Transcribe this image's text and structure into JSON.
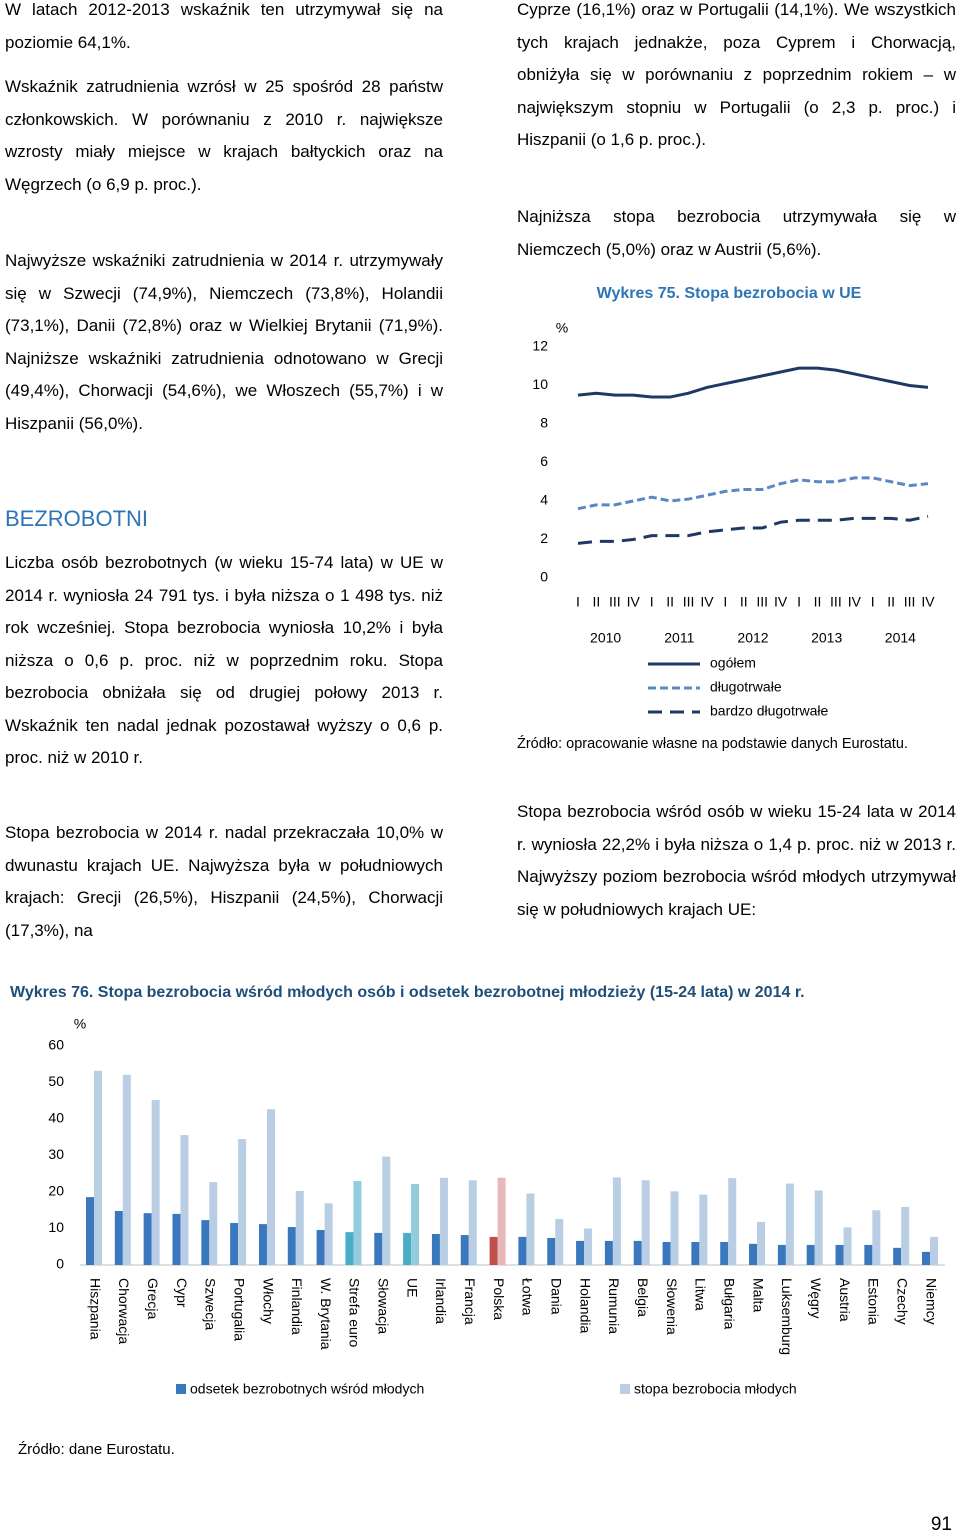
{
  "left": {
    "paragraphs": [
      "W latach 2012-2013 wskaźnik ten utrzymywał się na poziomie 64,1%.",
      "Wskaźnik zatrudnienia wzrósł w 25 spośród 28 państw członkowskich. W porównaniu z 2010 r. największe wzrosty miały miejsce w krajach bałtyckich oraz na Węgrzech (o 6,9 p. proc.).",
      "Najwyższe wskaźniki zatrudnienia w 2014 r. utrzymywały się w Szwecji (74,9%), Niemczech (73,8%), Holandii (73,1%), Danii (72,8%) oraz w Wielkiej Brytanii (71,9%). Najniższe wskaźniki zatrudnienia odnotowano w Grecji (49,4%), Chorwacji (54,6%), we Włoszech (55,7%) i w Hiszpanii (56,0%)."
    ],
    "heading": "BEZROBOTNI",
    "paragraphs2": [
      "Liczba osób bezrobotnych (w wieku 15-74 lata) w UE w 2014 r. wyniosła 24 791 tys. i była niższa o 1 498 tys. niż rok wcześniej. Stopa bezrobocia wyniosła 10,2% i była niższa o 0,6 p. proc. niż w poprzednim roku. Stopa bezrobocia obniżała się od drugiej połowy 2013 r. Wskaźnik ten nadal jednak pozostawał wyższy o 0,6 p. proc. niż w 2010 r.",
      "Stopa bezrobocia w 2014 r. nadal przekraczała 10,0% w dwunastu krajach UE. Najwyższa była w południowych krajach: Grecji (26,5%), Hiszpanii (24,5%), Chorwacji (17,3%), na"
    ]
  },
  "right": {
    "paragraphs": [
      "Cyprze (16,1%) oraz w Portugalii (14,1%). We wszystkich tych krajach jednakże, poza Cyprem i Chorwacją, obniżyła się w porównaniu z poprzednim rokiem – w największym stopniu w Portugalii (o 2,3 p. proc.) i Hiszpanii (o 1,6 p. proc.).",
      "Najniższa stopa bezrobocia utrzymywała się w Niemczech (5,0%) oraz w Austrii (5,6%)."
    ],
    "paragraphs2": [
      "Stopa bezrobocia wśród osób w wieku 15-24 lata w 2014 r. wyniosła 22,2% i była niższa o 1,4 p. proc. niż w 2013 r. Najwyższy poziom bezrobocia wśród młodych utrzymywał się w południowych krajach UE:"
    ]
  },
  "chart_data": [
    {
      "type": "line",
      "title": "Wykres 75. Stopa bezrobocia w UE",
      "y_unit": "%",
      "categories": [
        "I",
        "II",
        "III",
        "IV",
        "I",
        "II",
        "III",
        "IV",
        "I",
        "II",
        "III",
        "IV",
        "I",
        "II",
        "III",
        "IV",
        "I",
        "II",
        "III",
        "IV"
      ],
      "groups": [
        "2010",
        "2011",
        "2012",
        "2013",
        "2014"
      ],
      "ylim": [
        0,
        12
      ],
      "yticks": [
        0,
        2,
        4,
        6,
        8,
        10,
        12
      ],
      "grid": false,
      "series": [
        {
          "name": "ogółem",
          "color": "#1f3864",
          "dash": "none",
          "values": [
            9.5,
            9.6,
            9.5,
            9.5,
            9.4,
            9.4,
            9.6,
            9.9,
            10.1,
            10.3,
            10.5,
            10.7,
            10.9,
            10.9,
            10.8,
            10.6,
            10.4,
            10.2,
            10.0,
            9.9
          ]
        },
        {
          "name": "długotrwałe",
          "color": "#5b87c5",
          "dash": "8 4",
          "values": [
            3.6,
            3.8,
            3.8,
            4.0,
            4.2,
            4.0,
            4.1,
            4.3,
            4.5,
            4.6,
            4.6,
            4.9,
            5.1,
            5.0,
            5.0,
            5.2,
            5.2,
            5.0,
            4.8,
            4.9
          ]
        },
        {
          "name": "bardzo długotrwałe",
          "color": "#1f3864",
          "dash": "14 8",
          "values": [
            1.8,
            1.9,
            1.9,
            2.0,
            2.2,
            2.2,
            2.2,
            2.4,
            2.5,
            2.6,
            2.6,
            2.9,
            3.0,
            3.0,
            3.0,
            3.1,
            3.1,
            3.1,
            3.0,
            3.2
          ]
        }
      ],
      "source": "Źródło: opracowanie własne na podstawie danych Eurostatu."
    },
    {
      "type": "bar",
      "title": "Wykres 76. Stopa bezrobocia wśród młodych osób i odsetek bezrobotnej młodzieży (15-24 lata) w 2014 r.",
      "y_unit": "%",
      "categories": [
        "Hiszpania",
        "Chorwacja",
        "Grecja",
        "Cypr",
        "Szwecja",
        "Portugalia",
        "Włochy",
        "Finlandia",
        "W. Brytania",
        "Strefa euro",
        "Słowacja",
        "UE",
        "Irlandia",
        "Francja",
        "Polska",
        "Łotwa",
        "Dania",
        "Holandia",
        "Rumunia",
        "Belgia",
        "Słowenia",
        "Litwa",
        "Bułgaria",
        "Malta",
        "Luksemburg",
        "Węgry",
        "Austria",
        "Estonia",
        "Czechy",
        "Niemcy"
      ],
      "ylim": [
        0,
        60
      ],
      "yticks": [
        0,
        10,
        20,
        30,
        40,
        50,
        60
      ],
      "grid": false,
      "series": [
        {
          "name": "odsetek bezrobotnych wśród młodych",
          "color": "#3a78bd",
          "colors": [
            "#3a78bd",
            "#3a78bd",
            "#3a78bd",
            "#3a78bd",
            "#3a78bd",
            "#3a78bd",
            "#3a78bd",
            "#3a78bd",
            "#3a78bd",
            "#4bacc6",
            "#3a78bd",
            "#4bacc6",
            "#3a78bd",
            "#3a78bd",
            "#c0504d",
            "#3a78bd",
            "#3a78bd",
            "#3a78bd",
            "#3a78bd",
            "#3a78bd",
            "#3a78bd",
            "#3a78bd",
            "#3a78bd",
            "#3a78bd",
            "#3a78bd",
            "#3a78bd",
            "#3a78bd",
            "#3a78bd",
            "#3a78bd",
            "#3a78bd"
          ],
          "values": [
            18.6,
            14.8,
            14.2,
            14.0,
            12.3,
            11.5,
            11.2,
            10.4,
            9.6,
            9.0,
            8.8,
            8.8,
            8.5,
            8.2,
            7.7,
            7.7,
            7.4,
            6.6,
            6.6,
            6.6,
            6.3,
            6.3,
            6.3,
            5.8,
            5.5,
            5.5,
            5.5,
            5.5,
            4.7,
            3.6
          ]
        },
        {
          "name": "stopa bezrobocia młodych",
          "color": "#b9cde5",
          "colors": [
            "#b9cde5",
            "#b9cde5",
            "#b9cde5",
            "#b9cde5",
            "#b9cde5",
            "#b9cde5",
            "#b9cde5",
            "#b9cde5",
            "#b9cde5",
            "#93cddd",
            "#b9cde5",
            "#93cddd",
            "#b9cde5",
            "#b9cde5",
            "#e6b9b8",
            "#b9cde5",
            "#b9cde5",
            "#b9cde5",
            "#b9cde5",
            "#b9cde5",
            "#b9cde5",
            "#b9cde5",
            "#b9cde5",
            "#b9cde5",
            "#b9cde5",
            "#b9cde5",
            "#b9cde5",
            "#b9cde5",
            "#b9cde5",
            "#b9cde5"
          ],
          "values": [
            53.2,
            52.1,
            45.2,
            35.6,
            22.7,
            34.5,
            42.7,
            20.3,
            16.9,
            23.0,
            29.7,
            22.2,
            23.9,
            23.2,
            23.9,
            19.6,
            12.6,
            10.0,
            24.0,
            23.2,
            20.2,
            19.3,
            23.8,
            11.8,
            22.3,
            20.4,
            10.3,
            15.0,
            15.9,
            7.7
          ]
        }
      ],
      "source": "Źródło: dane Eurostatu."
    }
  ],
  "page_number": "91"
}
